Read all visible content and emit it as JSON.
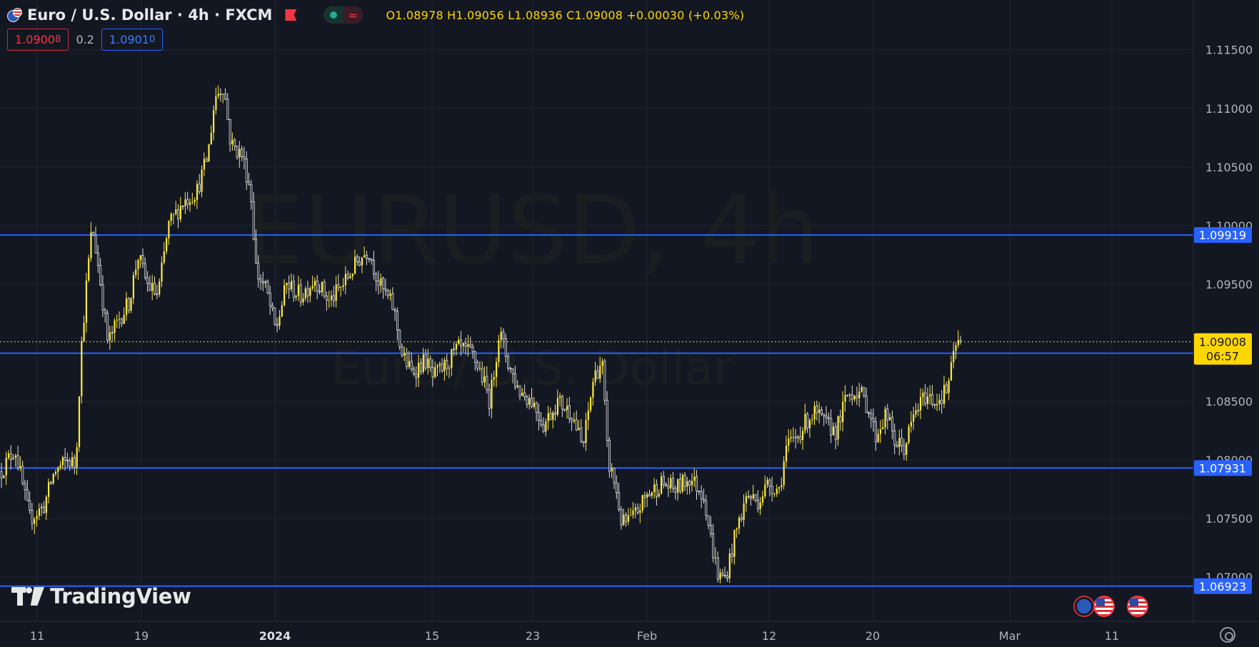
{
  "header": {
    "title": "Euro / U.S. Dollar · 4h · FXCM",
    "ohlc": "O1.08978  H1.09056  L1.08936  C1.09008  +0.00030 (+0.03%)",
    "sell_price": "1.0900",
    "sell_price_sup": "8",
    "spread": "0.2",
    "buy_price": "1.0901",
    "buy_price_sup": "0"
  },
  "watermark": {
    "symbol": "EURUSD, 4h",
    "description": "Euro / U.S. Dollar"
  },
  "logo": {
    "text": "TradingView"
  },
  "colors": {
    "background": "#131722",
    "candle_up": "#ffeb3b",
    "candle_down": "#e0e0e0",
    "level_line": "#2962ff",
    "last_price": "#ffd700",
    "grid": "#222632",
    "axis_text": "#b2b5be"
  },
  "icons": [
    "eu-us-flag-icon",
    "red-flag-icon",
    "market-open-dot-icon",
    "wave-icon",
    "tradingview-logo-icon",
    "eu-flag-icon",
    "us-flag-icon",
    "settings-gear-icon"
  ],
  "chart_data": {
    "type": "candlestick",
    "symbol": "EURUSD",
    "timeframe": "4h",
    "y_axis_ticks": [
      "1.11500",
      "1.11000",
      "1.10500",
      "1.10000",
      "1.09500",
      "1.08500",
      "1.08000",
      "1.07500",
      "1.07000"
    ],
    "ylim": [
      1.0662,
      1.1186
    ],
    "x_axis_ticks": [
      "11",
      "19",
      "2024",
      "15",
      "23",
      "Feb",
      "12",
      "20",
      "Mar",
      "11"
    ],
    "grid": true,
    "horizontal_levels": [
      {
        "value": 1.09919,
        "label": "1.09919"
      },
      {
        "value": 1.08911,
        "label": "1.08911"
      },
      {
        "value": 1.07931,
        "label": "1.07931"
      },
      {
        "value": 1.06923,
        "label": "1.06923"
      }
    ],
    "last_price": {
      "value": 1.09008,
      "label": "1.09008",
      "countdown": "06:57"
    },
    "open": 1.08978,
    "high": 1.09056,
    "low": 1.08936,
    "close": 1.09008,
    "change": "+0.00030",
    "change_pct": "+0.03%",
    "path_points": [
      [
        0,
        1.079
      ],
      [
        20,
        1.081
      ],
      [
        40,
        1.075
      ],
      [
        60,
        1.076
      ],
      [
        75,
        1.079
      ],
      [
        95,
        1.08
      ],
      [
        105,
        1.0795
      ],
      [
        112,
        1.089
      ],
      [
        120,
        1.095
      ],
      [
        128,
        1.1
      ],
      [
        138,
        1.096
      ],
      [
        150,
        1.09
      ],
      [
        165,
        1.092
      ],
      [
        180,
        1.0935
      ],
      [
        192,
        1.0975
      ],
      [
        205,
        1.095
      ],
      [
        220,
        1.094
      ],
      [
        235,
        1.1
      ],
      [
        255,
        1.102
      ],
      [
        275,
        1.103
      ],
      [
        290,
        1.106
      ],
      [
        300,
        1.111
      ],
      [
        312,
        1.112
      ],
      [
        322,
        1.107
      ],
      [
        338,
        1.106
      ],
      [
        350,
        1.103
      ],
      [
        358,
        1.096
      ],
      [
        372,
        1.0945
      ],
      [
        385,
        1.091
      ],
      [
        400,
        1.095
      ],
      [
        420,
        1.094
      ],
      [
        440,
        1.0955
      ],
      [
        460,
        1.0935
      ],
      [
        480,
        1.095
      ],
      [
        500,
        1.097
      ],
      [
        515,
        1.098
      ],
      [
        530,
        1.095
      ],
      [
        550,
        1.093
      ],
      [
        562,
        1.089
      ],
      [
        575,
        1.0875
      ],
      [
        595,
        1.0885
      ],
      [
        605,
        1.087
      ],
      [
        622,
        1.088
      ],
      [
        640,
        1.0895
      ],
      [
        660,
        1.089
      ],
      [
        672,
        1.0875
      ],
      [
        685,
        1.085
      ],
      [
        698,
        1.091
      ],
      [
        712,
        1.088
      ],
      [
        725,
        1.086
      ],
      [
        745,
        1.085
      ],
      [
        760,
        1.083
      ],
      [
        780,
        1.085
      ],
      [
        800,
        1.084
      ],
      [
        815,
        1.081
      ],
      [
        830,
        1.087
      ],
      [
        842,
        1.0885
      ],
      [
        850,
        1.08
      ],
      [
        860,
        1.078
      ],
      [
        870,
        1.0745
      ],
      [
        885,
        1.075
      ],
      [
        905,
        1.077
      ],
      [
        925,
        1.078
      ],
      [
        945,
        1.0775
      ],
      [
        965,
        1.0785
      ],
      [
        985,
        1.077
      ],
      [
        995,
        1.073
      ],
      [
        1005,
        1.07
      ],
      [
        1015,
        1.07
      ],
      [
        1030,
        1.074
      ],
      [
        1045,
        1.077
      ],
      [
        1060,
        1.0765
      ],
      [
        1075,
        1.078
      ],
      [
        1090,
        1.0775
      ],
      [
        1100,
        1.081
      ],
      [
        1115,
        1.082
      ],
      [
        1130,
        1.0835
      ],
      [
        1140,
        1.084
      ],
      [
        1155,
        1.083
      ],
      [
        1170,
        1.0825
      ],
      [
        1185,
        1.0855
      ],
      [
        1200,
        1.086
      ],
      [
        1215,
        1.0845
      ],
      [
        1225,
        1.082
      ],
      [
        1240,
        1.084
      ],
      [
        1252,
        1.0815
      ],
      [
        1265,
        1.081
      ],
      [
        1280,
        1.084
      ],
      [
        1295,
        1.0855
      ],
      [
        1310,
        1.085
      ],
      [
        1325,
        1.086
      ],
      [
        1332,
        1.088
      ],
      [
        1338,
        1.09
      ],
      [
        1345,
        1.0901
      ]
    ]
  }
}
